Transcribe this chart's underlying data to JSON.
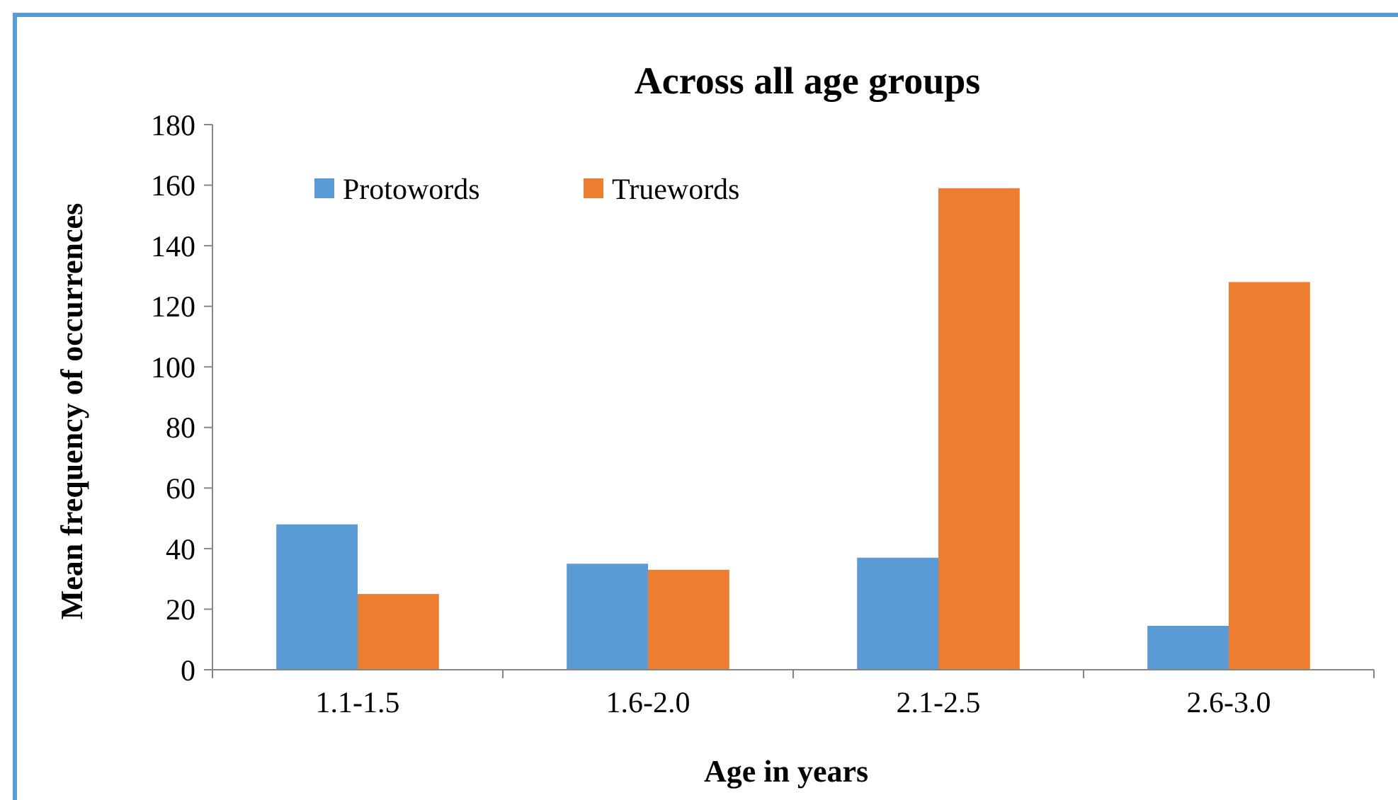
{
  "chart_data": {
    "type": "bar",
    "title": "Across all age groups",
    "xlabel": "Age in years",
    "ylabel": "Mean frequency of occurrences",
    "categories": [
      "1.1-1.5",
      "1.6-2.0",
      "2.1-2.5",
      "2.6-3.0"
    ],
    "series": [
      {
        "name": "Protowords",
        "color": "#5b9bd5",
        "values": [
          48,
          35,
          37,
          14.5
        ]
      },
      {
        "name": "Truewords",
        "color": "#ed7d31",
        "values": [
          25,
          33,
          159,
          128
        ]
      }
    ],
    "ylim": [
      0,
      180
    ],
    "yticks": [
      0,
      20,
      40,
      60,
      80,
      100,
      120,
      140,
      160,
      180
    ],
    "grid": false,
    "legend": "top left"
  }
}
